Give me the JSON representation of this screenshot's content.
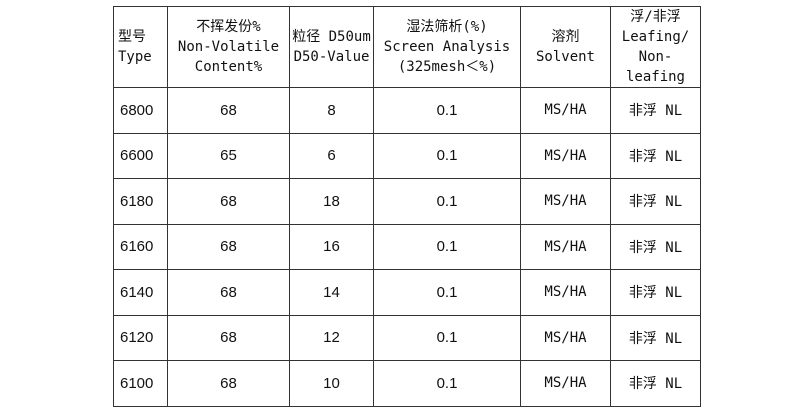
{
  "headers": [
    [
      "型号",
      "Type"
    ],
    [
      "不挥发份%",
      "Non-Volatile",
      "Content%"
    ],
    [
      "粒径 D50um",
      "D50-Value"
    ],
    [
      "湿法筛析(%)",
      "Screen Analysis",
      "(325mesh＜%)"
    ],
    [
      "溶剂",
      "Solvent"
    ],
    [
      "浮/非浮",
      "Leafing/",
      "Non-leafing"
    ]
  ],
  "rows": [
    [
      "6800",
      "68",
      "8",
      "0.1",
      "MS/HA",
      "非浮 NL"
    ],
    [
      "6600",
      "65",
      "6",
      "0.1",
      "MS/HA",
      "非浮 NL"
    ],
    [
      "6180",
      "68",
      "18",
      "0.1",
      "MS/HA",
      "非浮 NL"
    ],
    [
      "6160",
      "68",
      "16",
      "0.1",
      "MS/HA",
      "非浮 NL"
    ],
    [
      "6140",
      "68",
      "14",
      "0.1",
      "MS/HA",
      "非浮 NL"
    ],
    [
      "6120",
      "68",
      "12",
      "0.1",
      "MS/HA",
      "非浮 NL"
    ],
    [
      "6100",
      "68",
      "10",
      "0.1",
      "MS/HA",
      "非浮 NL"
    ]
  ]
}
